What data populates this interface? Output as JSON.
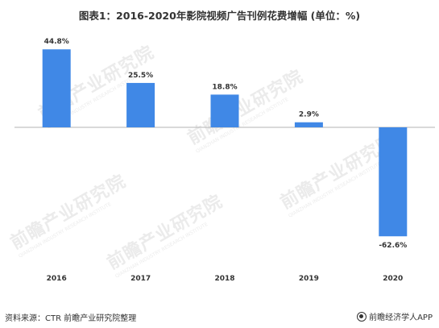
{
  "title": "图表1：2016-2020年影院视频广告刊例花费增幅 (单位：%)",
  "watermark": {
    "text": "前瞻产业研究院",
    "subtext": "QIANZHAN INDUSTRY RESEARCH INSTITUTE"
  },
  "source_label": "资料来源：CTR 前瞻产业研究院整理",
  "brand_label": "前瞻经济学人APP",
  "colors": {
    "bar": "#4088e6",
    "axis": "#b3b3b3",
    "text": "#333333"
  },
  "chart_data": {
    "type": "bar",
    "title": "图表1：2016-2020年影院视频广告刊例花费增幅 (单位：%)",
    "categories": [
      "2016",
      "2017",
      "2018",
      "2019",
      "2020"
    ],
    "values": [
      44.8,
      25.5,
      18.8,
      2.9,
      -62.6
    ],
    "data_labels": [
      "44.8%",
      "25.5%",
      "18.8%",
      "2.9%",
      "-62.6%"
    ],
    "xlabel": "",
    "ylabel": "",
    "ylim": [
      -65,
      47
    ],
    "grid": false,
    "legend": "none"
  }
}
